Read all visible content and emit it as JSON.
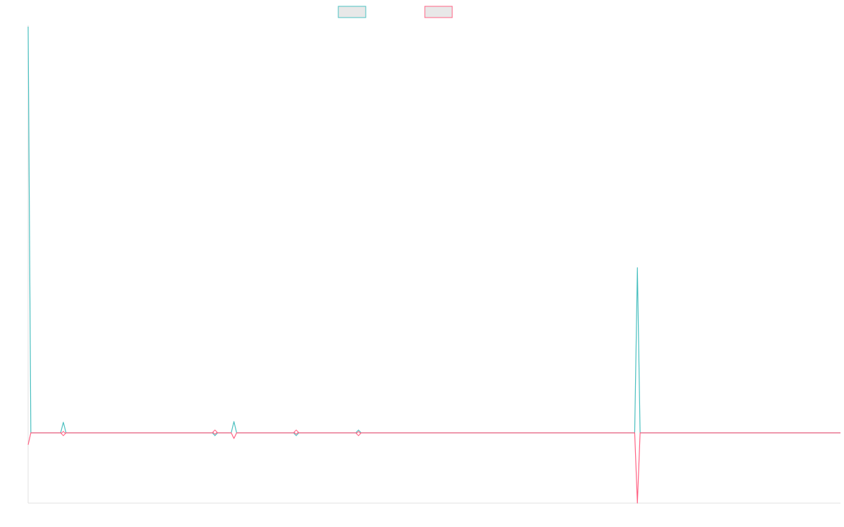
{
  "chart_data": {
    "type": "line",
    "title": "",
    "xlabel": "",
    "ylabel": "",
    "grid": false,
    "legend_position": "top-center",
    "ylim": [
      -100,
      580
    ],
    "x": [
      0,
      1,
      2,
      3,
      4,
      5,
      6,
      7,
      8,
      9,
      10,
      11,
      12,
      13,
      14,
      15,
      16,
      17,
      18,
      19,
      20,
      21,
      22,
      23,
      24,
      25,
      26,
      27,
      28,
      29,
      30,
      31,
      32,
      33,
      34,
      35,
      36,
      37,
      38,
      39,
      40,
      41,
      42,
      43,
      44,
      45,
      46,
      47,
      48,
      49,
      50,
      51,
      52,
      53,
      54,
      55,
      56,
      57,
      58,
      59,
      60,
      61,
      62,
      63,
      64,
      65,
      66,
      67,
      68,
      69,
      70,
      71,
      72,
      73,
      74,
      75,
      76,
      77,
      78,
      79,
      80,
      81,
      82,
      83,
      84,
      85,
      86,
      87,
      88,
      89,
      90,
      91,
      92,
      93,
      94,
      95,
      96,
      97,
      98,
      99,
      100,
      101,
      102,
      103,
      104,
      105,
      106,
      107,
      108,
      109,
      110,
      111,
      112,
      113,
      114,
      115,
      116,
      117,
      118,
      119,
      120,
      121,
      122,
      123,
      124,
      125,
      126,
      127,
      128,
      129,
      130,
      131,
      132,
      133,
      134,
      135,
      136,
      137,
      138,
      139,
      140,
      141,
      142,
      143,
      144,
      145,
      146,
      147,
      148,
      149,
      150,
      151,
      152,
      153,
      154,
      155,
      156,
      157,
      158,
      159,
      160,
      161,
      162,
      163,
      164,
      165,
      166,
      167,
      168,
      169,
      170,
      171,
      172,
      173,
      174,
      175,
      176,
      177,
      178,
      179,
      180,
      181,
      182,
      183,
      184,
      185,
      186,
      187,
      188,
      189,
      190,
      191,
      192,
      193,
      194,
      195,
      196,
      197,
      198,
      199,
      200,
      201,
      202,
      203,
      204,
      205,
      206,
      207,
      208,
      209,
      210,
      211,
      212,
      213,
      214,
      215,
      216,
      217,
      218,
      219,
      220,
      221,
      222,
      223,
      224,
      225,
      226,
      227,
      228,
      229,
      230,
      231,
      232,
      233,
      234,
      235,
      236,
      237,
      238,
      239,
      240,
      241,
      242,
      243,
      244,
      245,
      246,
      247,
      248,
      249,
      250,
      251,
      252,
      253,
      254,
      255,
      256,
      257,
      258,
      259,
      260,
      261,
      262,
      263,
      264,
      265,
      266,
      267,
      268,
      269,
      270,
      271,
      272,
      273,
      274,
      275,
      276,
      277,
      278,
      279,
      280,
      281,
      282,
      283,
      284,
      285,
      286,
      287,
      288,
      289,
      290,
      291,
      292,
      293,
      294,
      295,
      296,
      297,
      298,
      299,
      300
    ],
    "series": [
      {
        "color": "#4bc0c0",
        "fill": "#e8e8e8",
        "peaks": [
          {
            "x": 0,
            "y": 578
          },
          {
            "x": 13,
            "y": 15
          },
          {
            "x": 76,
            "y": 16
          },
          {
            "x": 225,
            "y": 235
          }
        ],
        "troughs": [
          {
            "x": 69,
            "y": -1
          },
          {
            "x": 99,
            "y": -1
          }
        ],
        "small_bumps": [
          {
            "x": 122,
            "y": 1
          }
        ],
        "baseline": 0
      },
      {
        "color": "#ff6384",
        "fill": "#e8e8e8",
        "peaks": [
          {
            "x": 69,
            "y": 1
          },
          {
            "x": 99,
            "y": 1
          },
          {
            "x": 122,
            "y": -1
          }
        ],
        "troughs": [
          {
            "x": 0,
            "y": -17
          },
          {
            "x": 13,
            "y": -1
          },
          {
            "x": 76,
            "y": -8
          },
          {
            "x": 225,
            "y": -100
          }
        ],
        "baseline": 0
      }
    ]
  }
}
